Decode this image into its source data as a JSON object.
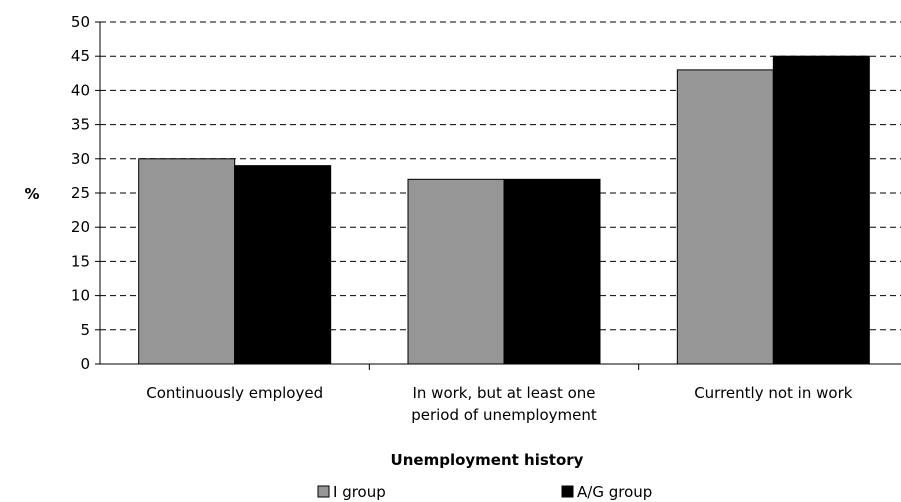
{
  "chart_data": {
    "type": "bar",
    "title": "",
    "xlabel": "Unemployment history",
    "ylabel": "%",
    "ylim": [
      0,
      50
    ],
    "ytick_step": 5,
    "grid": true,
    "legend_position": "bottom",
    "categories": [
      [
        "Continuously employed"
      ],
      [
        "In work, but at least one",
        "period of unemployment"
      ],
      [
        "Currently not in work"
      ]
    ],
    "series": [
      {
        "name": "I group",
        "color": "#969696",
        "values": [
          30,
          27,
          43
        ]
      },
      {
        "name": "A/G group",
        "color": "#000000",
        "values": [
          29,
          27,
          45
        ]
      }
    ]
  }
}
